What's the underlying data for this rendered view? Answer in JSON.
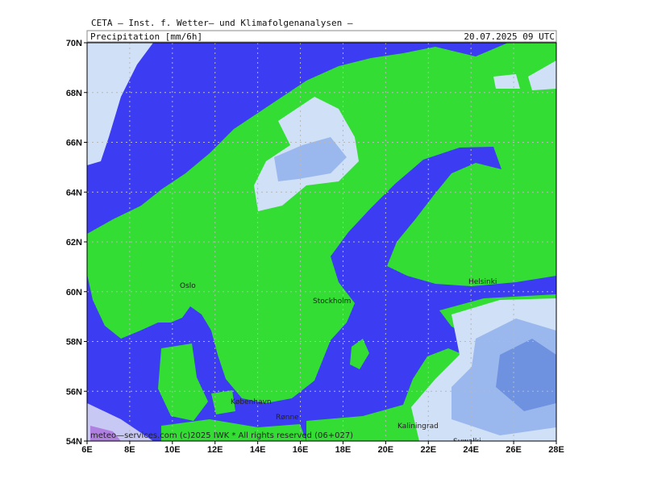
{
  "header": {
    "institute": "CETA — Inst. f. Wetter— und Klimafolgenanalysen —",
    "field": "Precipitation [mm/6h]",
    "time": "20.07.2025 09 UTC"
  },
  "axes": {
    "lat_labels": [
      "70N",
      "68N",
      "66N",
      "64N",
      "62N",
      "60N",
      "58N",
      "56N",
      "54N"
    ],
    "lon_labels": [
      "6E",
      "8E",
      "10E",
      "12E",
      "14E",
      "16E",
      "18E",
      "20E",
      "22E",
      "24E",
      "26E",
      "28E"
    ]
  },
  "cities": [
    "Oslo",
    "Stockholm",
    "Helsinki",
    "København",
    "Rønne",
    "Kaliningrad",
    "Suwałki"
  ],
  "footer": "meteo—services.com (c)2025 IWK * All rights reserved (06+027)"
}
